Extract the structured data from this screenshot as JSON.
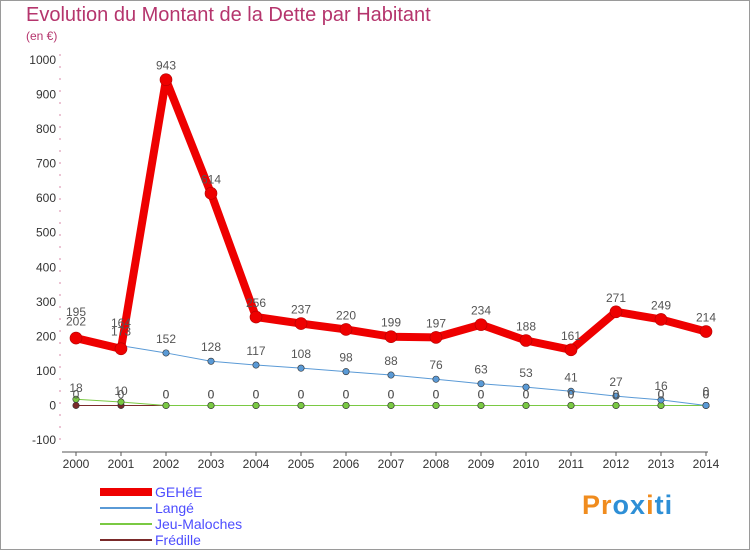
{
  "title": "Evolution du Montant de la Dette par Habitant",
  "subtitle": "(en €)",
  "logo": {
    "text": "Proxiti",
    "colors": [
      "#f08c1e",
      "#f08c1e",
      "#2e8fd6",
      "#2e8fd6",
      "#f08c1e",
      "#2e8fd6",
      "#2e8fd6"
    ]
  },
  "chart_data": {
    "type": "line",
    "categories": [
      "2000",
      "2001",
      "2002",
      "2003",
      "2004",
      "2005",
      "2006",
      "2007",
      "2008",
      "2009",
      "2010",
      "2011",
      "2012",
      "2013",
      "2014"
    ],
    "ylim": [
      -100,
      1000
    ],
    "yticks": [
      -100,
      0,
      100,
      200,
      300,
      400,
      500,
      600,
      700,
      800,
      900,
      1000
    ],
    "grid": false,
    "legend_position": "bottom-left",
    "series": [
      {
        "name": "GEHéE",
        "color": "#ee0000",
        "width": 8,
        "values": [
          195,
          164,
          943,
          614,
          256,
          237,
          220,
          199,
          197,
          234,
          188,
          161,
          271,
          249,
          214
        ],
        "labels": [
          "195",
          "164",
          "943",
          "614",
          "256",
          "237",
          "220",
          "199",
          "197",
          "234",
          "188",
          "161",
          "271",
          "249",
          "214"
        ]
      },
      {
        "name": "Langé",
        "color": "#5a9ad6",
        "width": 1,
        "values": [
          202,
          173,
          152,
          128,
          117,
          108,
          98,
          88,
          76,
          63,
          53,
          41,
          27,
          16,
          0
        ],
        "labels": [
          "202",
          "173",
          "152",
          "128",
          "117",
          "108",
          "98",
          "88",
          "76",
          "63",
          "53",
          "41",
          "27",
          "16",
          "0"
        ]
      },
      {
        "name": "Jeu-Maloches",
        "color": "#7ac943",
        "width": 1,
        "values": [
          18,
          10,
          0,
          0,
          0,
          0,
          0,
          0,
          0,
          0,
          0,
          0,
          0,
          0,
          0
        ],
        "labels": [
          "18",
          "10",
          "0",
          "0",
          "0",
          "0",
          "0",
          "0",
          "0",
          "0",
          "0",
          "0",
          "0",
          "0",
          "0"
        ]
      },
      {
        "name": "Frédille",
        "color": "#7a2a2a",
        "width": 1,
        "values": [
          0,
          0,
          0,
          0,
          0,
          0,
          0,
          0,
          0,
          0,
          0,
          0,
          0,
          0,
          0
        ],
        "labels": [
          "0",
          "0",
          "0",
          "0",
          "0",
          "0",
          "0",
          "0",
          "0",
          "0",
          "0",
          "0",
          "0",
          "0",
          "0"
        ]
      }
    ]
  }
}
